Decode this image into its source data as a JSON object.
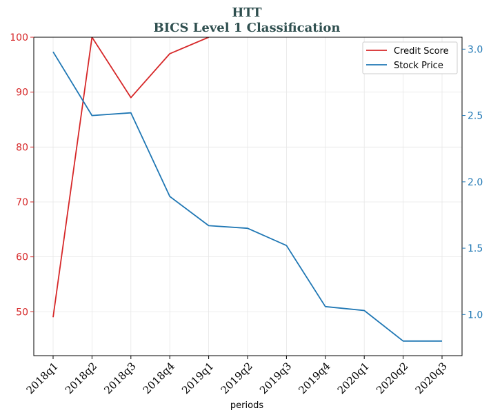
{
  "chart_data": {
    "type": "line",
    "title": "HTT",
    "subtitle": "BICS Level 1 Classification",
    "xlabel": "periods",
    "categories": [
      "2018q1",
      "2018q2",
      "2018q3",
      "2018q4",
      "2019q1",
      "2019q2",
      "2019q3",
      "2019q4",
      "2020q1",
      "2020q2",
      "2020q3"
    ],
    "left_axis": {
      "ylim": [
        42,
        100
      ],
      "ticks": [
        50,
        60,
        70,
        80,
        90,
        100
      ],
      "color": "#d62728"
    },
    "right_axis": {
      "ylim": [
        0.69,
        3.09
      ],
      "ticks": [
        1.0,
        1.5,
        2.0,
        2.5,
        3.0
      ],
      "tick_labels": [
        "1.0",
        "1.5",
        "2.0",
        "2.5",
        "3.0"
      ],
      "color": "#1f77b4"
    },
    "grid": true,
    "legend_position": "top-right",
    "series": [
      {
        "name": "Credit Score",
        "axis": "left",
        "color": "#d62728",
        "values": [
          49,
          100,
          89,
          97,
          100,
          null,
          null,
          null,
          null,
          null,
          null
        ]
      },
      {
        "name": "Stock Price",
        "axis": "right",
        "color": "#1f77b4",
        "values": [
          2.98,
          2.5,
          2.52,
          1.89,
          1.67,
          1.65,
          1.52,
          1.06,
          1.03,
          0.8,
          0.8
        ]
      }
    ]
  }
}
